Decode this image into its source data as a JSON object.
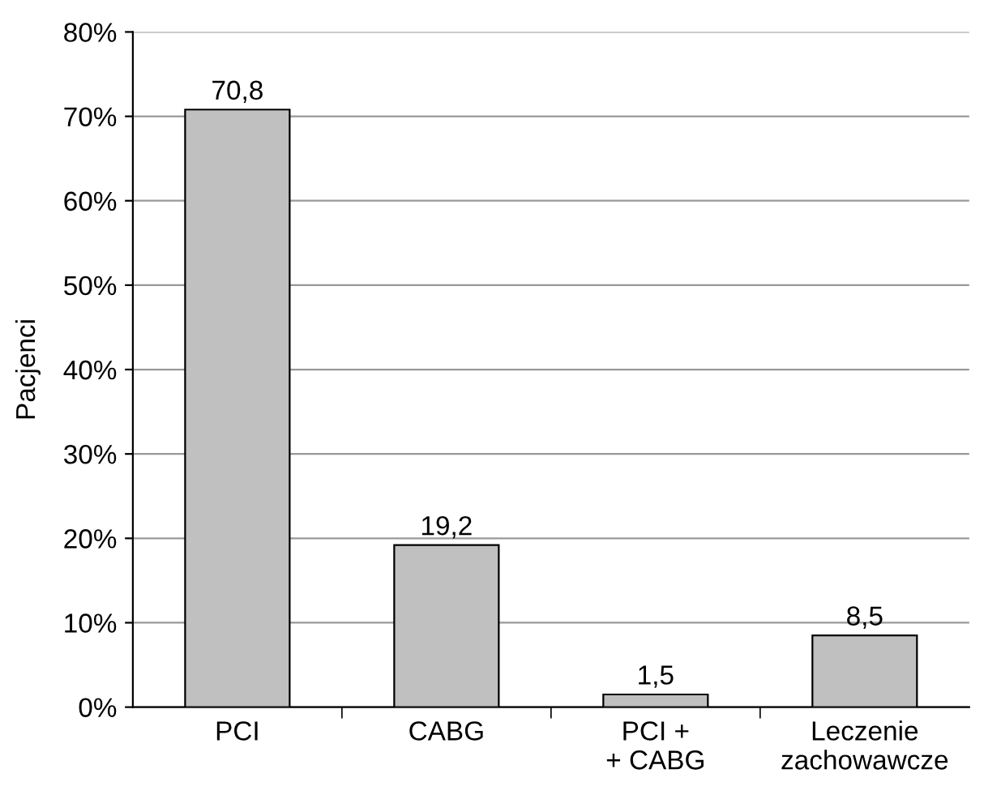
{
  "chart_data": {
    "type": "bar",
    "ylabel": "Pacjenci",
    "categories": [
      "PCI",
      "CABG",
      "PCI +\n+ CABG",
      "Leczenie\nzachowawcze"
    ],
    "values": [
      70.8,
      19.2,
      1.5,
      8.5
    ],
    "value_labels": [
      "70,8",
      "19,2",
      "1,5",
      "8,5"
    ],
    "color": "#c0c0c0",
    "ylim": [
      0,
      80
    ],
    "yticks": [
      {
        "value": 0,
        "label": "0%"
      },
      {
        "value": 10,
        "label": "10%"
      },
      {
        "value": 20,
        "label": "20%"
      },
      {
        "value": 30,
        "label": "30%"
      },
      {
        "value": 40,
        "label": "40%"
      },
      {
        "value": 50,
        "label": "50%"
      },
      {
        "value": 60,
        "label": "60%"
      },
      {
        "value": 70,
        "label": "70%"
      },
      {
        "value": 80,
        "label": "80%"
      }
    ],
    "grid": "y",
    "legend": false
  }
}
